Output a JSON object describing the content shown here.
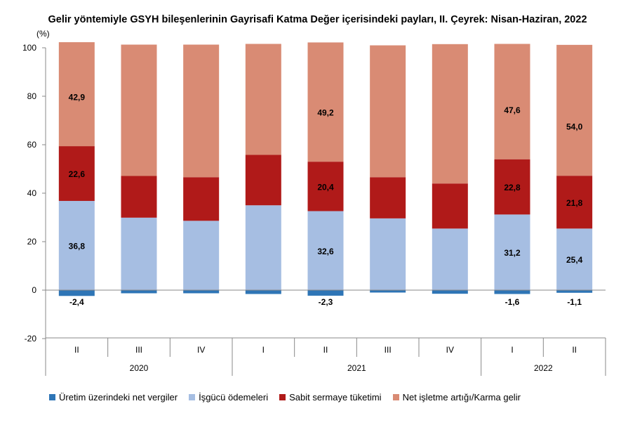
{
  "title": "Gelir yöntemiyle GSYH bileşenlerinin Gayrisafi Katma Değer içerisindeki payları, II. Çeyrek: Nisan-Haziran, 2022",
  "chart_data": {
    "type": "bar",
    "stacked": true,
    "ylabel": "(%)",
    "ylim": [
      -20,
      100
    ],
    "yticks": [
      -20,
      0,
      20,
      40,
      60,
      80,
      100
    ],
    "grid": false,
    "legend_position": "bottom",
    "categories": [
      "II",
      "III",
      "IV",
      "I",
      "II",
      "III",
      "IV",
      "I",
      "II"
    ],
    "years": [
      {
        "label": "2020",
        "span": 3
      },
      {
        "label": "2021",
        "span": 4
      },
      {
        "label": "2022",
        "span": 2
      }
    ],
    "series": [
      {
        "name": "Üretim üzerindeki net vergiler",
        "color": "#2e75b6",
        "values": [
          -2.4,
          -1.3,
          -1.3,
          -1.6,
          -2.3,
          -1.0,
          -1.5,
          -1.6,
          -1.1
        ]
      },
      {
        "name": "İşgücü ödemeleri",
        "color": "#a6bee2",
        "values": [
          36.8,
          29.9,
          28.6,
          35.0,
          32.6,
          29.6,
          25.4,
          31.2,
          25.4
        ]
      },
      {
        "name": "Sabit sermaye tüketimi",
        "color": "#b01a19",
        "values": [
          22.6,
          17.2,
          18.0,
          20.8,
          20.4,
          17.0,
          18.6,
          22.8,
          21.8
        ]
      },
      {
        "name": "Net işletme artığı/Karma gelir",
        "color": "#d98b74",
        "values": [
          42.9,
          54.2,
          54.7,
          45.8,
          49.2,
          54.4,
          57.5,
          47.6,
          54.0
        ]
      }
    ],
    "data_labels": [
      {
        "bar": 0,
        "series": 0,
        "text": "-2,4"
      },
      {
        "bar": 0,
        "series": 1,
        "text": "36,8"
      },
      {
        "bar": 0,
        "series": 2,
        "text": "22,6"
      },
      {
        "bar": 0,
        "series": 3,
        "text": "42,9"
      },
      {
        "bar": 4,
        "series": 0,
        "text": "-2,3"
      },
      {
        "bar": 4,
        "series": 1,
        "text": "32,6"
      },
      {
        "bar": 4,
        "series": 2,
        "text": "20,4"
      },
      {
        "bar": 4,
        "series": 3,
        "text": "49,2"
      },
      {
        "bar": 7,
        "series": 0,
        "text": "-1,6"
      },
      {
        "bar": 7,
        "series": 1,
        "text": "31,2"
      },
      {
        "bar": 7,
        "series": 2,
        "text": "22,8"
      },
      {
        "bar": 7,
        "series": 3,
        "text": "47,6"
      },
      {
        "bar": 8,
        "series": 0,
        "text": "-1,1"
      },
      {
        "bar": 8,
        "series": 1,
        "text": "25,4"
      },
      {
        "bar": 8,
        "series": 2,
        "text": "21,8"
      },
      {
        "bar": 8,
        "series": 3,
        "text": "54,0"
      }
    ]
  }
}
